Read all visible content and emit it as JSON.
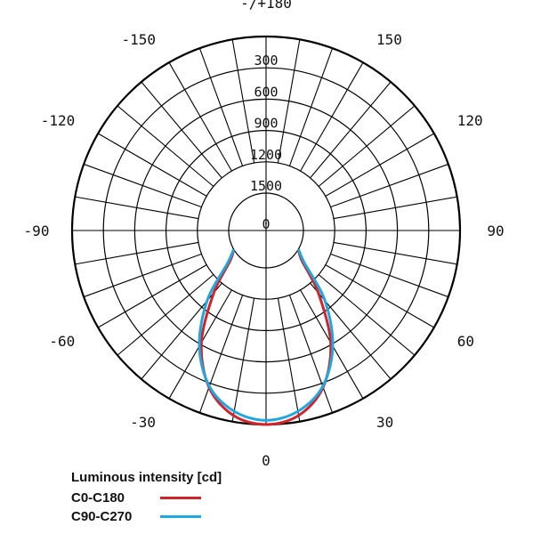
{
  "chart_data": {
    "type": "polar",
    "title": "",
    "angle_labels": [
      {
        "angle": 0,
        "label": "0"
      },
      {
        "angle": 30,
        "label": "30"
      },
      {
        "angle": 60,
        "label": "60"
      },
      {
        "angle": 90,
        "label": "90"
      },
      {
        "angle": 120,
        "label": "120"
      },
      {
        "angle": 150,
        "label": "150"
      },
      {
        "angle": 180,
        "label": "-/+180"
      },
      {
        "angle": -150,
        "label": "-150"
      },
      {
        "angle": -120,
        "label": "-120"
      },
      {
        "angle": -90,
        "label": "-90"
      },
      {
        "angle": -60,
        "label": "-60"
      },
      {
        "angle": -30,
        "label": "-30"
      }
    ],
    "radial_ticks": [
      0,
      300,
      600,
      900,
      1200,
      1500
    ],
    "radial_labels": [
      "0",
      "300",
      "600",
      "900",
      "1200",
      "1500"
    ],
    "rmax": 1500,
    "angle_step": 10,
    "inner_grid_from": 300,
    "legend": {
      "title": "Luminous intensity [cd]"
    },
    "series": [
      {
        "name": "C0-C180",
        "color": "#d2232a",
        "angles": [
          0,
          10,
          20,
          30,
          40,
          50,
          60
        ],
        "values": [
          1500,
          1440,
          1240,
          880,
          420,
          90,
          0
        ]
      },
      {
        "name": "C90-C270",
        "color": "#1ea7e1",
        "angles": [
          0,
          10,
          20,
          30,
          40,
          50,
          60
        ],
        "values": [
          1460,
          1400,
          1230,
          920,
          520,
          120,
          0
        ]
      }
    ]
  }
}
